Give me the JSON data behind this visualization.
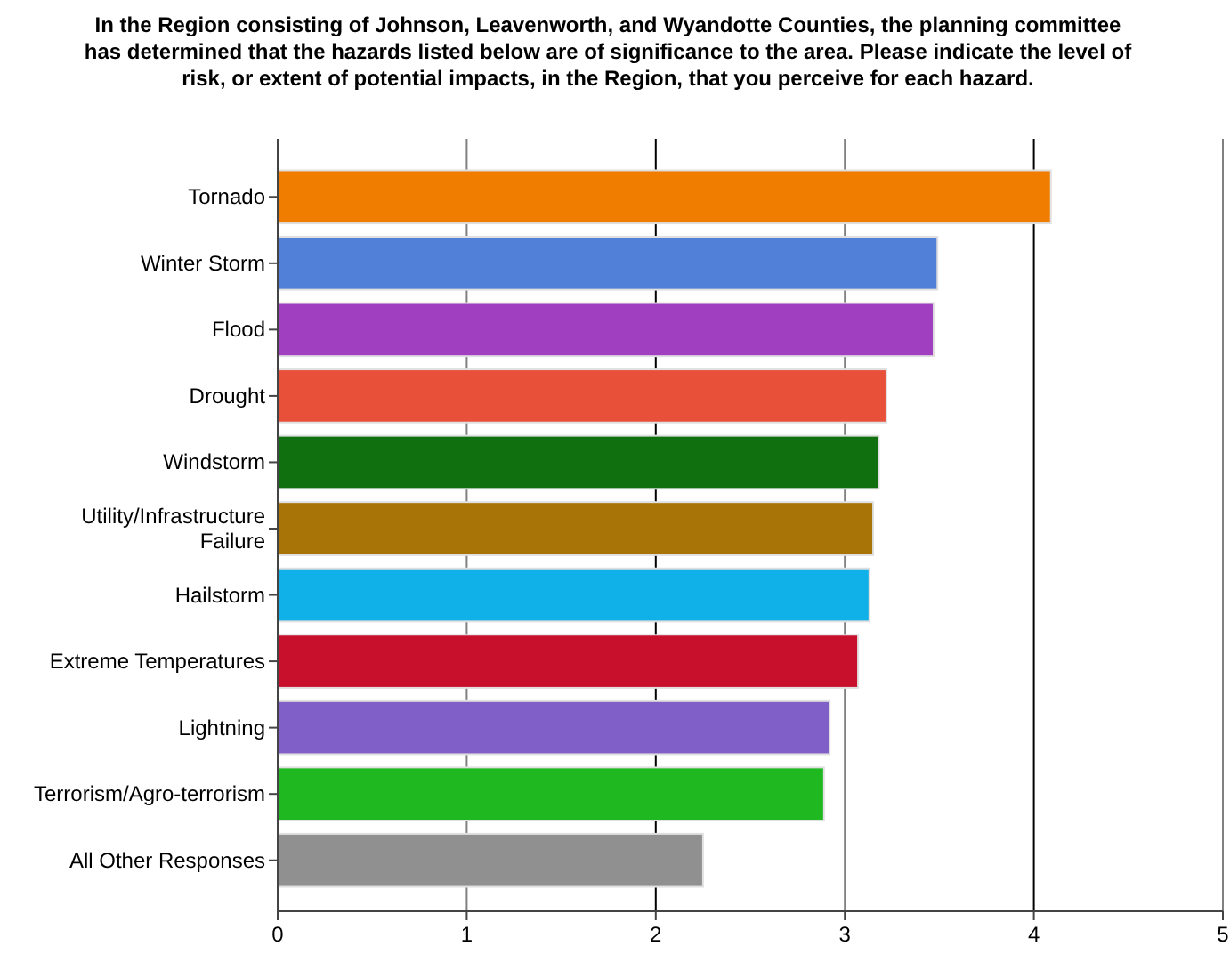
{
  "chart_data": {
    "type": "bar",
    "orientation": "horizontal",
    "title": "In the Region consisting of Johnson, Leavenworth, and Wyandotte Counties, the planning committee has determined that the hazards listed below are of significance to the area.  Please indicate the level of risk, or extent of potential impacts, in the Region, that you perceive for each hazard.",
    "categories": [
      "Tornado",
      "Winter Storm",
      "Flood",
      "Drought",
      "Windstorm",
      "Utility/Infrastructure Failure",
      "Hailstorm",
      "Extreme Temperatures",
      "Lightning",
      "Terrorism/Agro-terrorism",
      "All Other Responses"
    ],
    "values": [
      4.09,
      3.49,
      3.47,
      3.22,
      3.18,
      3.15,
      3.13,
      3.07,
      2.92,
      2.89,
      2.25
    ],
    "colors": [
      "#f07c00",
      "#5080d8",
      "#a040c0",
      "#e8503a",
      "#107010",
      "#a87408",
      "#10b0e8",
      "#c8102c",
      "#8060c8",
      "#20b820",
      "#909090"
    ],
    "xlim": [
      0,
      5
    ],
    "xticks": [
      0,
      1,
      2,
      3,
      4,
      5
    ],
    "grid": "x"
  }
}
